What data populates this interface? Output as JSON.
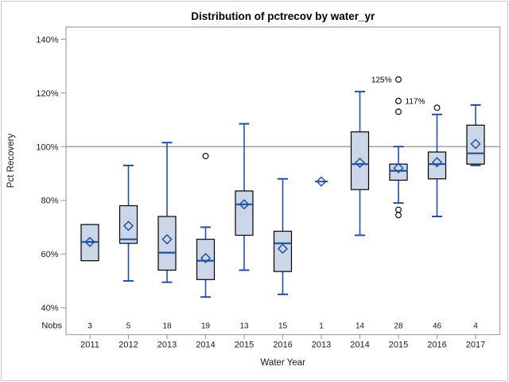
{
  "chart_data": {
    "type": "boxplot",
    "title": "Distribution of pctrecov by water_yr",
    "xlabel": "Water Year",
    "ylabel": "Pct Recovery",
    "nobs_label": "Nobs",
    "y_ticks": [
      140,
      120,
      100,
      80,
      60,
      40
    ],
    "y_tick_suffix": "%",
    "ylim": [
      30,
      145
    ],
    "reference_line": 100,
    "grid": "off",
    "legend": "none",
    "categories": [
      "2011",
      "2012",
      "2013",
      "2014",
      "2015",
      "2016",
      "2013",
      "2014",
      "2015",
      "2016",
      "2017"
    ],
    "nobs": [
      3,
      5,
      18,
      19,
      13,
      15,
      1,
      14,
      28,
      46,
      4
    ],
    "series": [
      {
        "year": "2011",
        "nobs": 3,
        "whisker_low": 57.5,
        "q1": 57.5,
        "median": 64.5,
        "mean": 64.5,
        "q3": 71,
        "whisker_high": 71,
        "outliers": []
      },
      {
        "year": "2012",
        "nobs": 5,
        "whisker_low": 50,
        "q1": 64,
        "median": 65.5,
        "mean": 70.5,
        "q3": 78,
        "whisker_high": 93,
        "outliers": []
      },
      {
        "year": "2013",
        "nobs": 18,
        "whisker_low": 49.5,
        "q1": 54,
        "median": 60.5,
        "mean": 65.5,
        "q3": 74,
        "whisker_high": 101.5,
        "outliers": []
      },
      {
        "year": "2014",
        "nobs": 19,
        "whisker_low": 44,
        "q1": 50.5,
        "median": 57.5,
        "mean": 58.5,
        "q3": 65.5,
        "whisker_high": 70,
        "outliers": [
          96.5
        ]
      },
      {
        "year": "2015",
        "nobs": 13,
        "whisker_low": 54,
        "q1": 67,
        "median": 78.5,
        "mean": 78.5,
        "q3": 83.5,
        "whisker_high": 108.5,
        "outliers": []
      },
      {
        "year": "2016",
        "nobs": 15,
        "whisker_low": 45,
        "q1": 53.5,
        "median": 64,
        "mean": 62,
        "q3": 68.5,
        "whisker_high": 88,
        "outliers": []
      },
      {
        "year": "2013",
        "nobs": 1,
        "whisker_low": 87,
        "q1": 87,
        "median": 87,
        "mean": 87,
        "q3": 87,
        "whisker_high": 87,
        "outliers": []
      },
      {
        "year": "2014",
        "nobs": 14,
        "whisker_low": 67,
        "q1": 84,
        "median": 93.5,
        "mean": 94,
        "q3": 105.5,
        "whisker_high": 120.5,
        "outliers": []
      },
      {
        "year": "2015",
        "nobs": 28,
        "whisker_low": 79,
        "q1": 87.5,
        "median": 91,
        "mean": 92,
        "q3": 93.5,
        "whisker_high": 100,
        "outliers": [
          125,
          117,
          113,
          76.5,
          74.5
        ],
        "outlier_labels": [
          {
            "value": 125,
            "text": "125%",
            "side": "left"
          },
          {
            "value": 117,
            "text": "117%",
            "side": "right"
          }
        ]
      },
      {
        "year": "2016",
        "nobs": 46,
        "whisker_low": 74,
        "q1": 88,
        "median": 93.5,
        "mean": 94.2,
        "q3": 98,
        "whisker_high": 112,
        "outliers": [
          114.5
        ]
      },
      {
        "year": "2017",
        "nobs": 4,
        "whisker_low": 93,
        "q1": 93.5,
        "median": 97.5,
        "mean": 101,
        "q3": 108,
        "whisker_high": 115.5,
        "outliers": []
      }
    ],
    "colors": {
      "box_fill": "#ccd6e9",
      "box_border": "#000000",
      "whisker_median_mean": "#2151a1",
      "outlier": "#000000",
      "reference_line": "#8f8f8f",
      "axis_frame": "#a3a3a3",
      "text": "#1a1a1a",
      "background": "#ffffff"
    }
  }
}
